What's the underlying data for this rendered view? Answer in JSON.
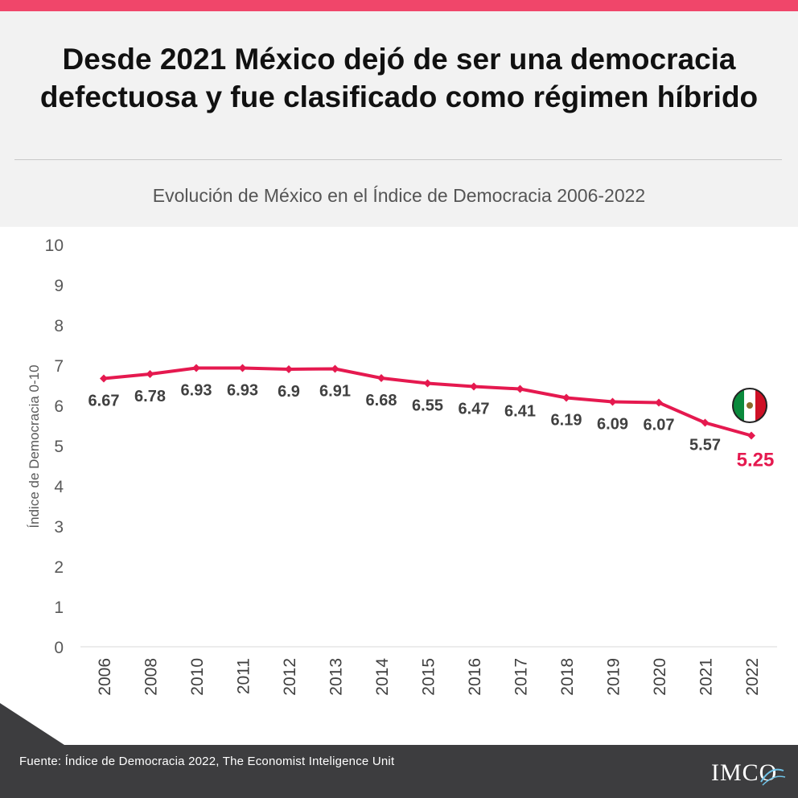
{
  "header": {
    "title": "Desde 2021 México dejó de ser una democracia defectuosa y fue clasificado como régimen híbrido",
    "subtitle": "Evolución de México en el Índice de Democracia 2006-2022"
  },
  "chart_data": {
    "type": "line",
    "categories": [
      "2006",
      "2008",
      "2010",
      "2011",
      "2012",
      "2013",
      "2014",
      "2015",
      "2016",
      "2017",
      "2018",
      "2019",
      "2020",
      "2021",
      "2022"
    ],
    "series": [
      {
        "values": [
          6.67,
          6.78,
          6.93,
          6.93,
          6.9,
          6.91,
          6.68,
          6.55,
          6.47,
          6.41,
          6.19,
          6.09,
          6.07,
          5.57,
          5.25
        ]
      }
    ],
    "data_labels": [
      "6.67",
      "6.78",
      "6.93",
      "6.93",
      "6.9",
      "6.91",
      "6.68",
      "6.55",
      "6.47",
      "6.41",
      "6.19",
      "6.09",
      "6.07",
      "5.57",
      "5.25"
    ],
    "ylabel": "Índice de Democracia 0-10",
    "xlabel": "",
    "ylim": [
      0,
      10
    ],
    "yticks": [
      "0",
      "1",
      "2",
      "3",
      "4",
      "5",
      "6",
      "7",
      "8",
      "9",
      "10"
    ],
    "grid": false,
    "colors": {
      "line": "#e5194f",
      "highlight_label": "#e5194f",
      "label": "#404040"
    },
    "flag_icon": "mexico-flag-icon"
  },
  "footer": {
    "source": "Fuente: Índice de Democracia 2022, The Economist Inteligence Unit",
    "logo": "IMCO"
  }
}
